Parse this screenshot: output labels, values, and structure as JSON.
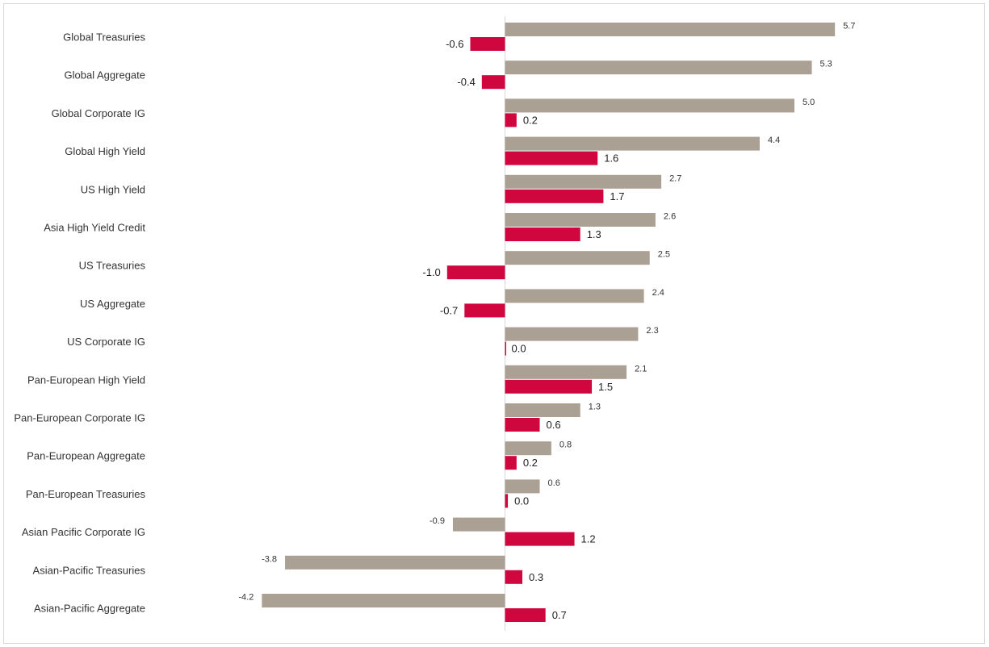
{
  "chart_data": {
    "type": "bar",
    "orientation": "horizontal",
    "categories": [
      "Global Treasuries",
      "Global Aggregate",
      "Global Corporate IG",
      "Global High Yield",
      "US High Yield",
      "Asia High Yield Credit",
      "US Treasuries",
      "US Aggregate",
      "US Corporate IG",
      "Pan-European High Yield",
      "Pan-European Corporate IG",
      "Pan-European Aggregate",
      "Pan-European Treasuries",
      "Asian Pacific Corporate IG",
      "Asian-Pacific Treasuries",
      "Asian-Pacific Aggregate"
    ],
    "series": [
      {
        "values": [
          5.7,
          5.3,
          5.0,
          4.4,
          2.7,
          2.6,
          2.5,
          2.4,
          2.3,
          2.1,
          1.3,
          0.8,
          0.6,
          -0.9,
          -3.8,
          -4.2
        ],
        "labels": [
          "5.7",
          "5.3",
          "5.0",
          "4.4",
          "2.7",
          "2.6",
          "2.5",
          "2.4",
          "2.3",
          "2.1",
          "1.3",
          "0.8",
          "0.6",
          "-0.9",
          "-3.8",
          "-4.2"
        ],
        "color": "#aba094"
      },
      {
        "values": [
          -0.6,
          -0.4,
          0.2,
          1.6,
          1.7,
          1.3,
          -1.0,
          -0.7,
          0.0,
          1.5,
          0.6,
          0.2,
          0.05,
          1.2,
          0.3,
          0.7
        ],
        "labels": [
          "-0.6",
          "-0.4",
          "0.2",
          "1.6",
          "1.7",
          "1.3",
          "-1.0",
          "-0.7",
          "0.0",
          "1.5",
          "0.6",
          "0.2",
          "0.0",
          "1.2",
          "0.3",
          "0.7"
        ],
        "color": "#d0063f"
      }
    ],
    "xlim": [
      -4.2,
      5.7
    ],
    "grid": false,
    "legend": "none",
    "title": "",
    "xlabel": "",
    "ylabel": ""
  }
}
